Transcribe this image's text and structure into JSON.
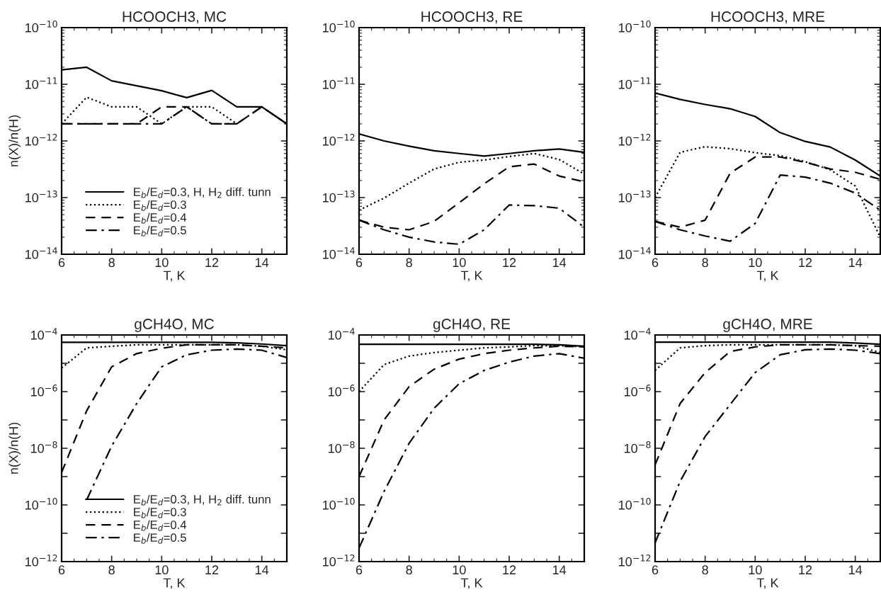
{
  "chart_data": [
    {
      "type": "line",
      "title": "HCOOCH3, MC",
      "xlabel": "T, K",
      "ylabel": "n(X)/n(H)",
      "log": "y",
      "legend": "bottom left",
      "grid": false,
      "x": [
        6,
        7,
        8,
        9,
        10,
        11,
        12,
        13,
        14,
        15
      ],
      "xlim": [
        6,
        15
      ],
      "xticks": [
        6,
        8,
        10,
        12,
        14
      ],
      "ylim": [
        1e-14,
        1e-10
      ],
      "yticks": [
        {
          "value": 1e-14,
          "label": "10$^{−14}$"
        },
        {
          "value": 1e-13,
          "label": "10$^{−13}$"
        },
        {
          "value": 1e-12,
          "label": "10$^{−12}$"
        },
        {
          "value": 1e-11,
          "label": "10$^{−11}$"
        },
        {
          "value": 1e-10,
          "label": "10$^{−10}$"
        }
      ],
      "series": [
        {
          "name": "E$_{b}$/E$_{d}$=0.3, H, H$_{2}$ diff. tunn",
          "color": "#000000",
          "line_style": "solid",
          "values": [
            1.8e-11,
            2e-11,
            1.15e-11,
            9.4e-12,
            7.7e-12,
            5.8e-12,
            7.8e-12,
            4e-12,
            4e-12,
            2e-12
          ]
        },
        {
          "name": "E$_{b}$/E$_{d}$=0.3",
          "color": "#000000",
          "line_style": "dotted",
          "values": [
            2e-12,
            5.9e-12,
            4e-12,
            4e-12,
            2e-12,
            4e-12,
            4e-12,
            2e-12,
            null,
            null
          ]
        },
        {
          "name": "E$_{b}$/E$_{d}$=0.4",
          "color": "#000000",
          "line_style": "dashed",
          "values": [
            2e-12,
            2e-12,
            2e-12,
            2e-12,
            4e-12,
            4e-12,
            2e-12,
            2e-12,
            4e-12,
            2e-12
          ]
        },
        {
          "name": "E$_{b}$/E$_{d}$=0.5",
          "color": "#000000",
          "line_style": "dashdot",
          "values": [
            2e-12,
            2e-12,
            2e-12,
            2e-12,
            2e-12,
            4e-12,
            2e-12,
            2e-12,
            4e-12,
            2e-12
          ]
        }
      ]
    },
    {
      "type": "line",
      "title": "HCOOCH3, RE",
      "xlabel": "T, K",
      "log": "y",
      "grid": false,
      "x": [
        6,
        7,
        8,
        9,
        10,
        11,
        12,
        13,
        14,
        15
      ],
      "xlim": [
        6,
        15
      ],
      "xticks": [
        6,
        8,
        10,
        12,
        14
      ],
      "ylim": [
        1e-14,
        1e-10
      ],
      "yticks": [
        {
          "value": 1e-14,
          "label": "10$^{−14}$"
        },
        {
          "value": 1e-13,
          "label": "10$^{−13}$"
        },
        {
          "value": 1e-12,
          "label": "10$^{−12}$"
        },
        {
          "value": 1e-11,
          "label": "10$^{−11}$"
        },
        {
          "value": 1e-10,
          "label": "10$^{−10}$"
        }
      ],
      "series": [
        {
          "color": "#000000",
          "line_style": "solid",
          "values": [
            1.33e-12,
            1e-12,
            8.1e-13,
            6.7e-13,
            6e-13,
            5.4e-13,
            6e-13,
            6.7e-13,
            7.2e-13,
            6.3e-13
          ]
        },
        {
          "color": "#000000",
          "line_style": "dotted",
          "values": [
            6e-14,
            9.8e-14,
            1.8e-13,
            3.2e-13,
            4.2e-13,
            4.6e-13,
            5.3e-13,
            6e-13,
            4.7e-13,
            2.6e-13
          ]
        },
        {
          "color": "#000000",
          "line_style": "dashed",
          "values": [
            4e-14,
            3e-14,
            2.7e-14,
            3.8e-14,
            8.1e-14,
            1.75e-13,
            3.5e-13,
            3.9e-13,
            2.4e-13,
            1.9e-13
          ]
        },
        {
          "color": "#000000",
          "line_style": "dashdot",
          "values": [
            4e-14,
            2.7e-14,
            2e-14,
            1.65e-14,
            1.5e-14,
            2.7e-14,
            7.4e-14,
            7.2e-14,
            6.5e-14,
            3e-14
          ]
        }
      ]
    },
    {
      "type": "line",
      "title": "HCOOCH3, MRE",
      "xlabel": "T, K",
      "log": "y",
      "grid": false,
      "x": [
        6,
        7,
        8,
        9,
        10,
        11,
        12,
        13,
        14,
        15
      ],
      "xlim": [
        6,
        15
      ],
      "xticks": [
        6,
        8,
        10,
        12,
        14
      ],
      "ylim": [
        1e-14,
        1e-10
      ],
      "yticks": [
        {
          "value": 1e-14,
          "label": "10$^{−14}$"
        },
        {
          "value": 1e-13,
          "label": "10$^{−13}$"
        },
        {
          "value": 1e-12,
          "label": "10$^{−12}$"
        },
        {
          "value": 1e-11,
          "label": "10$^{−11}$"
        },
        {
          "value": 1e-10,
          "label": "10$^{−10}$"
        }
      ],
      "series": [
        {
          "color": "#000000",
          "line_style": "solid",
          "values": [
            7e-12,
            5.4e-12,
            4.4e-12,
            3.7e-12,
            2.7e-12,
            1.4e-12,
            9.8e-13,
            7.8e-13,
            4.6e-13,
            2.4e-13
          ]
        },
        {
          "color": "#000000",
          "line_style": "dotted",
          "values": [
            1e-13,
            6.3e-13,
            7.9e-13,
            7.3e-13,
            6.2e-13,
            5.5e-13,
            4.3e-13,
            3.1e-13,
            1.6e-13,
            2e-14
          ]
        },
        {
          "color": "#000000",
          "line_style": "dashed",
          "values": [
            3.8e-14,
            3e-14,
            4e-14,
            2.7e-13,
            5.2e-13,
            5.2e-13,
            4.2e-13,
            3.2e-13,
            2.8e-13,
            2.1e-13
          ]
        },
        {
          "color": "#000000",
          "line_style": "dashdot",
          "values": [
            3.8e-14,
            2.7e-14,
            2.1e-14,
            1.7e-14,
            3.5e-14,
            2.5e-13,
            2.3e-13,
            1.8e-13,
            1.2e-13,
            6e-14
          ]
        }
      ]
    },
    {
      "type": "line",
      "title": "gCH4O, MC",
      "xlabel": "T, K",
      "ylabel": "n(X)/n(H)",
      "log": "y",
      "legend": "bottom left",
      "grid": false,
      "x": [
        6,
        7,
        8,
        9,
        10,
        11,
        12,
        13,
        14,
        15
      ],
      "xlim": [
        6,
        15
      ],
      "xticks": [
        6,
        8,
        10,
        12,
        14
      ],
      "ylim": [
        1e-12,
        0.0001
      ],
      "yticks": [
        {
          "value": 1e-12,
          "label": "10$^{−12}$"
        },
        {
          "value": 1e-11,
          "label": null
        },
        {
          "value": 1e-10,
          "label": "10$^{−10}$"
        },
        {
          "value": 1e-09,
          "label": null
        },
        {
          "value": 1e-08,
          "label": "10$^{−8}$"
        },
        {
          "value": 1e-07,
          "label": null
        },
        {
          "value": 1e-06,
          "label": "10$^{−6}$"
        },
        {
          "value": 1e-05,
          "label": null
        },
        {
          "value": 0.0001,
          "label": "10$^{−4}$"
        }
      ],
      "series": [
        {
          "name": "E$_{b}$/E$_{d}$=0.3, H, H$_{2}$ diff. tunn",
          "color": "#000000",
          "line_style": "solid",
          "values": [
            5.5e-05,
            5.5e-05,
            5.5e-05,
            5.5e-05,
            5.5e-05,
            5.5e-05,
            5.5e-05,
            5.3e-05,
            4.8e-05,
            4.2e-05
          ]
        },
        {
          "name": "E$_{b}$/E$_{d}$=0.3",
          "color": "#000000",
          "line_style": "dotted",
          "values": [
            6.8e-06,
            3.5e-05,
            4e-05,
            4.5e-05,
            4.5e-05,
            4.5e-05,
            4.5e-05,
            4.5e-05,
            4e-05,
            3e-05
          ]
        },
        {
          "name": "E$_{b}$/E$_{d}$=0.4",
          "color": "#000000",
          "line_style": "dashed",
          "values": [
            1.4e-09,
            2.1e-07,
            7.5e-06,
            2.2e-05,
            3.4e-05,
            4.5e-05,
            4.5e-05,
            4.5e-05,
            4e-05,
            3.5e-05
          ]
        },
        {
          "name": "E$_{b}$/E$_{d}$=0.5",
          "color": "#000000",
          "line_style": "dashdot",
          "values": [
            null,
            1.5e-10,
            1.2e-08,
            3.8e-07,
            7.5e-06,
            2e-05,
            2.9e-05,
            3.2e-05,
            2.9e-05,
            1.6e-05
          ]
        }
      ]
    },
    {
      "type": "line",
      "title": "gCH4O, RE",
      "xlabel": "T, K",
      "log": "y",
      "grid": false,
      "x": [
        6,
        7,
        8,
        9,
        10,
        11,
        12,
        13,
        14,
        15
      ],
      "xlim": [
        6,
        15
      ],
      "xticks": [
        6,
        8,
        10,
        12,
        14
      ],
      "ylim": [
        1e-12,
        0.0001
      ],
      "yticks": [
        {
          "value": 1e-12,
          "label": "10$^{−12}$"
        },
        {
          "value": 1e-11,
          "label": null
        },
        {
          "value": 1e-10,
          "label": "10$^{−10}$"
        },
        {
          "value": 1e-09,
          "label": null
        },
        {
          "value": 1e-08,
          "label": "10$^{−8}$"
        },
        {
          "value": 1e-07,
          "label": null
        },
        {
          "value": 1e-06,
          "label": "10$^{−6}$"
        },
        {
          "value": 1e-05,
          "label": null
        },
        {
          "value": 0.0001,
          "label": "10$^{−4}$"
        }
      ],
      "series": [
        {
          "color": "#000000",
          "line_style": "solid",
          "values": [
            4.7e-05,
            4.7e-05,
            4.7e-05,
            4.7e-05,
            4.7e-05,
            4.7e-05,
            4.7e-05,
            4.7e-05,
            4.5e-05,
            4e-05
          ]
        },
        {
          "color": "#000000",
          "line_style": "dotted",
          "values": [
            1e-06,
            9e-06,
            1.8e-05,
            2.4e-05,
            2.9e-05,
            3.5e-05,
            3.8e-05,
            4.2e-05,
            4.2e-05,
            3.8e-05
          ]
        },
        {
          "color": "#000000",
          "line_style": "dashed",
          "values": [
            1e-09,
            1e-07,
            1.5e-06,
            6.2e-06,
            1.4e-05,
            2.2e-05,
            2.9e-05,
            3.5e-05,
            4e-05,
            3.8e-05
          ]
        },
        {
          "color": "#000000",
          "line_style": "dashdot",
          "values": [
            3e-12,
            3e-10,
            1.5e-08,
            2.6e-07,
            1.9e-06,
            5.6e-06,
            1.1e-05,
            1.8e-05,
            2.2e-05,
            1.5e-05
          ]
        }
      ]
    },
    {
      "type": "line",
      "title": "gCH4O, MRE",
      "xlabel": "T, K",
      "log": "y",
      "grid": false,
      "x": [
        6,
        7,
        8,
        9,
        10,
        11,
        12,
        13,
        14,
        15
      ],
      "xlim": [
        6,
        15
      ],
      "xticks": [
        6,
        8,
        10,
        12,
        14
      ],
      "ylim": [
        1e-12,
        0.0001
      ],
      "yticks": [
        {
          "value": 1e-12,
          "label": "10$^{−12}$"
        },
        {
          "value": 1e-11,
          "label": null
        },
        {
          "value": 1e-10,
          "label": "10$^{−10}$"
        },
        {
          "value": 1e-09,
          "label": null
        },
        {
          "value": 1e-08,
          "label": "10$^{−8}$"
        },
        {
          "value": 1e-07,
          "label": null
        },
        {
          "value": 1e-06,
          "label": "10$^{−6}$"
        },
        {
          "value": 1e-05,
          "label": null
        },
        {
          "value": 0.0001,
          "label": "10$^{−4}$"
        }
      ],
      "series": [
        {
          "color": "#000000",
          "line_style": "solid",
          "values": [
            5.6e-05,
            5.6e-05,
            5.6e-05,
            5.6e-05,
            5.6e-05,
            5.6e-05,
            5.6e-05,
            5.6e-05,
            5.2e-05,
            4.7e-05
          ]
        },
        {
          "color": "#000000",
          "line_style": "dotted",
          "values": [
            5.6e-06,
            3.5e-05,
            4.2e-05,
            4.5e-05,
            4.5e-05,
            4.5e-05,
            4.5e-05,
            4.5e-05,
            4.2e-05,
            2.4e-05
          ]
        },
        {
          "color": "#000000",
          "line_style": "dashed",
          "values": [
            2.6e-09,
            3.8e-07,
            4.7e-06,
            2.6e-05,
            3.8e-05,
            4.5e-05,
            4.5e-05,
            4.5e-05,
            4.2e-05,
            4e-05
          ]
        },
        {
          "color": "#000000",
          "line_style": "dashdot",
          "values": [
            4.6e-12,
            6.8e-10,
            2.6e-08,
            3.5e-07,
            4.7e-06,
            2e-05,
            3e-05,
            3.2e-05,
            2.9e-05,
            2.2e-05
          ]
        }
      ]
    }
  ]
}
